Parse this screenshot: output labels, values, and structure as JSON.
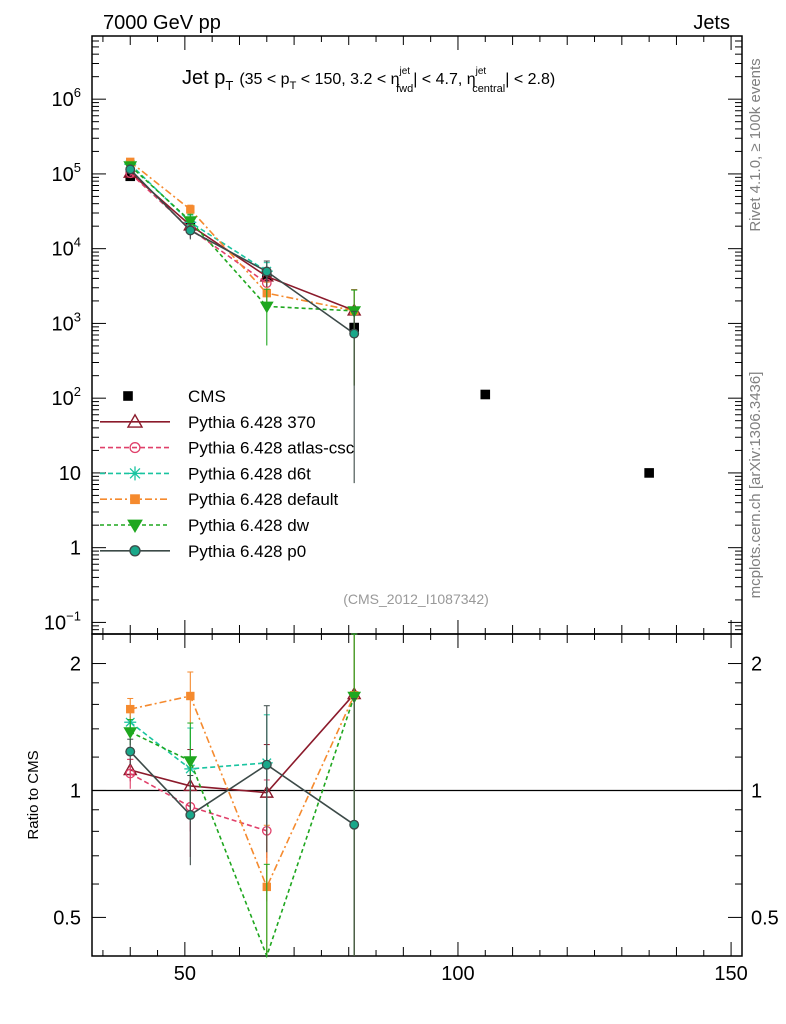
{
  "header": {
    "left": "7000 GeV pp",
    "right": "Jets"
  },
  "side_labels": {
    "rivet": "Rivet 4.1.0, ≥ 100k events",
    "mcplots": "mcplots.cern.ch [arXiv:1306.3436]"
  },
  "watermark": "(CMS_2012_I1087342)",
  "chart_data": {
    "type": "line",
    "title": {
      "main": "Jet p",
      "main_sub": "T",
      "p1": "(35 < p",
      "p1_sub": "T",
      "p2": " < 150, 3.2 < η",
      "p2_sup": "jet",
      "p2_sub": "fwd",
      "p3": "| < 4.7, η",
      "p3_sup": "jet",
      "p3_sub": "central",
      "p4": "| < 2.8)"
    },
    "xlim": [
      33,
      152
    ],
    "ylim_main": [
      0.07,
      7000000
    ],
    "ylim_ratio": [
      0.405,
      2.35
    ],
    "ylabel_ratio": "Ratio to CMS",
    "xticks": [
      {
        "v": 50,
        "label": "50"
      },
      {
        "v": 100,
        "label": "100"
      },
      {
        "v": 150,
        "label": "150"
      }
    ],
    "yticks_main": [
      {
        "v": 1000000,
        "base": "10",
        "exp": "6"
      },
      {
        "v": 100000,
        "base": "10",
        "exp": "5"
      },
      {
        "v": 10000,
        "base": "10",
        "exp": "4"
      },
      {
        "v": 1000,
        "base": "10",
        "exp": "3"
      },
      {
        "v": 100,
        "base": "10",
        "exp": "2"
      },
      {
        "v": 10,
        "base": "10",
        "exp": ""
      },
      {
        "v": 1,
        "base": "1",
        "exp": ""
      },
      {
        "v": 0.1,
        "base": "10",
        "exp": "−1"
      }
    ],
    "yticks_ratio": [
      {
        "v": 2,
        "label": "2"
      },
      {
        "v": 1,
        "label": "1"
      },
      {
        "v": 0.5,
        "label": "0.5"
      }
    ],
    "data": {
      "name": "CMS",
      "x": [
        40,
        51,
        65,
        81,
        105,
        135
      ],
      "y": [
        93000,
        20000,
        4300,
        880,
        112,
        10
      ],
      "yerr": [
        0.05,
        0.05,
        0.05,
        0.05,
        0.05,
        0.05
      ]
    },
    "series": [
      {
        "name": "Pythia 6.428 370",
        "color": "#8b1a2b",
        "marker": "triangle",
        "dash": "",
        "x": [
          40,
          51,
          65,
          81
        ],
        "y": [
          104000,
          20500,
          4250,
          1490
        ],
        "yerr": [
          0.06,
          0.22,
          0.3,
          0.9
        ]
      },
      {
        "name": "Pythia 6.428 atlas-csc",
        "color": "#e0406a",
        "marker": "circle-open",
        "dash": "5,3",
        "x": [
          40,
          51,
          65,
          81
        ],
        "y": [
          102000,
          18300,
          3450,
          null
        ],
        "yerr": [
          0.08,
          0.24,
          0.32,
          null
        ]
      },
      {
        "name": "Pythia 6.428 d6t",
        "color": "#19c4a0",
        "marker": "star",
        "dash": "5,3",
        "x": [
          40,
          51,
          65,
          81
        ],
        "y": [
          135000,
          22500,
          5000,
          null
        ],
        "yerr": [
          0.07,
          0.25,
          0.3,
          null
        ]
      },
      {
        "name": "Pythia 6.428 default",
        "color": "#f58a2e",
        "marker": "square",
        "dash": "7,3,2,3",
        "x": [
          40,
          51,
          65,
          81
        ],
        "y": [
          145000,
          33500,
          2540,
          1480
        ],
        "yerr": [
          0.06,
          0.14,
          0.4,
          0.9
        ]
      },
      {
        "name": "Pythia 6.428 dw",
        "color": "#1fa71f",
        "marker": "triangle-down",
        "dash": "4,3",
        "x": [
          40,
          51,
          65,
          81
        ],
        "y": [
          128000,
          23500,
          1690,
          1470
        ],
        "yerr": [
          0.07,
          0.23,
          0.7,
          0.9
        ]
      },
      {
        "name": "Pythia 6.428 p0",
        "color": "#3c4a48",
        "marker": "circle-filled",
        "dash": "",
        "x": [
          40,
          51,
          65,
          81
        ],
        "y": [
          115000,
          17500,
          4950,
          730
        ],
        "yerr": [
          0.07,
          0.24,
          0.38,
          0.99
        ]
      }
    ]
  }
}
